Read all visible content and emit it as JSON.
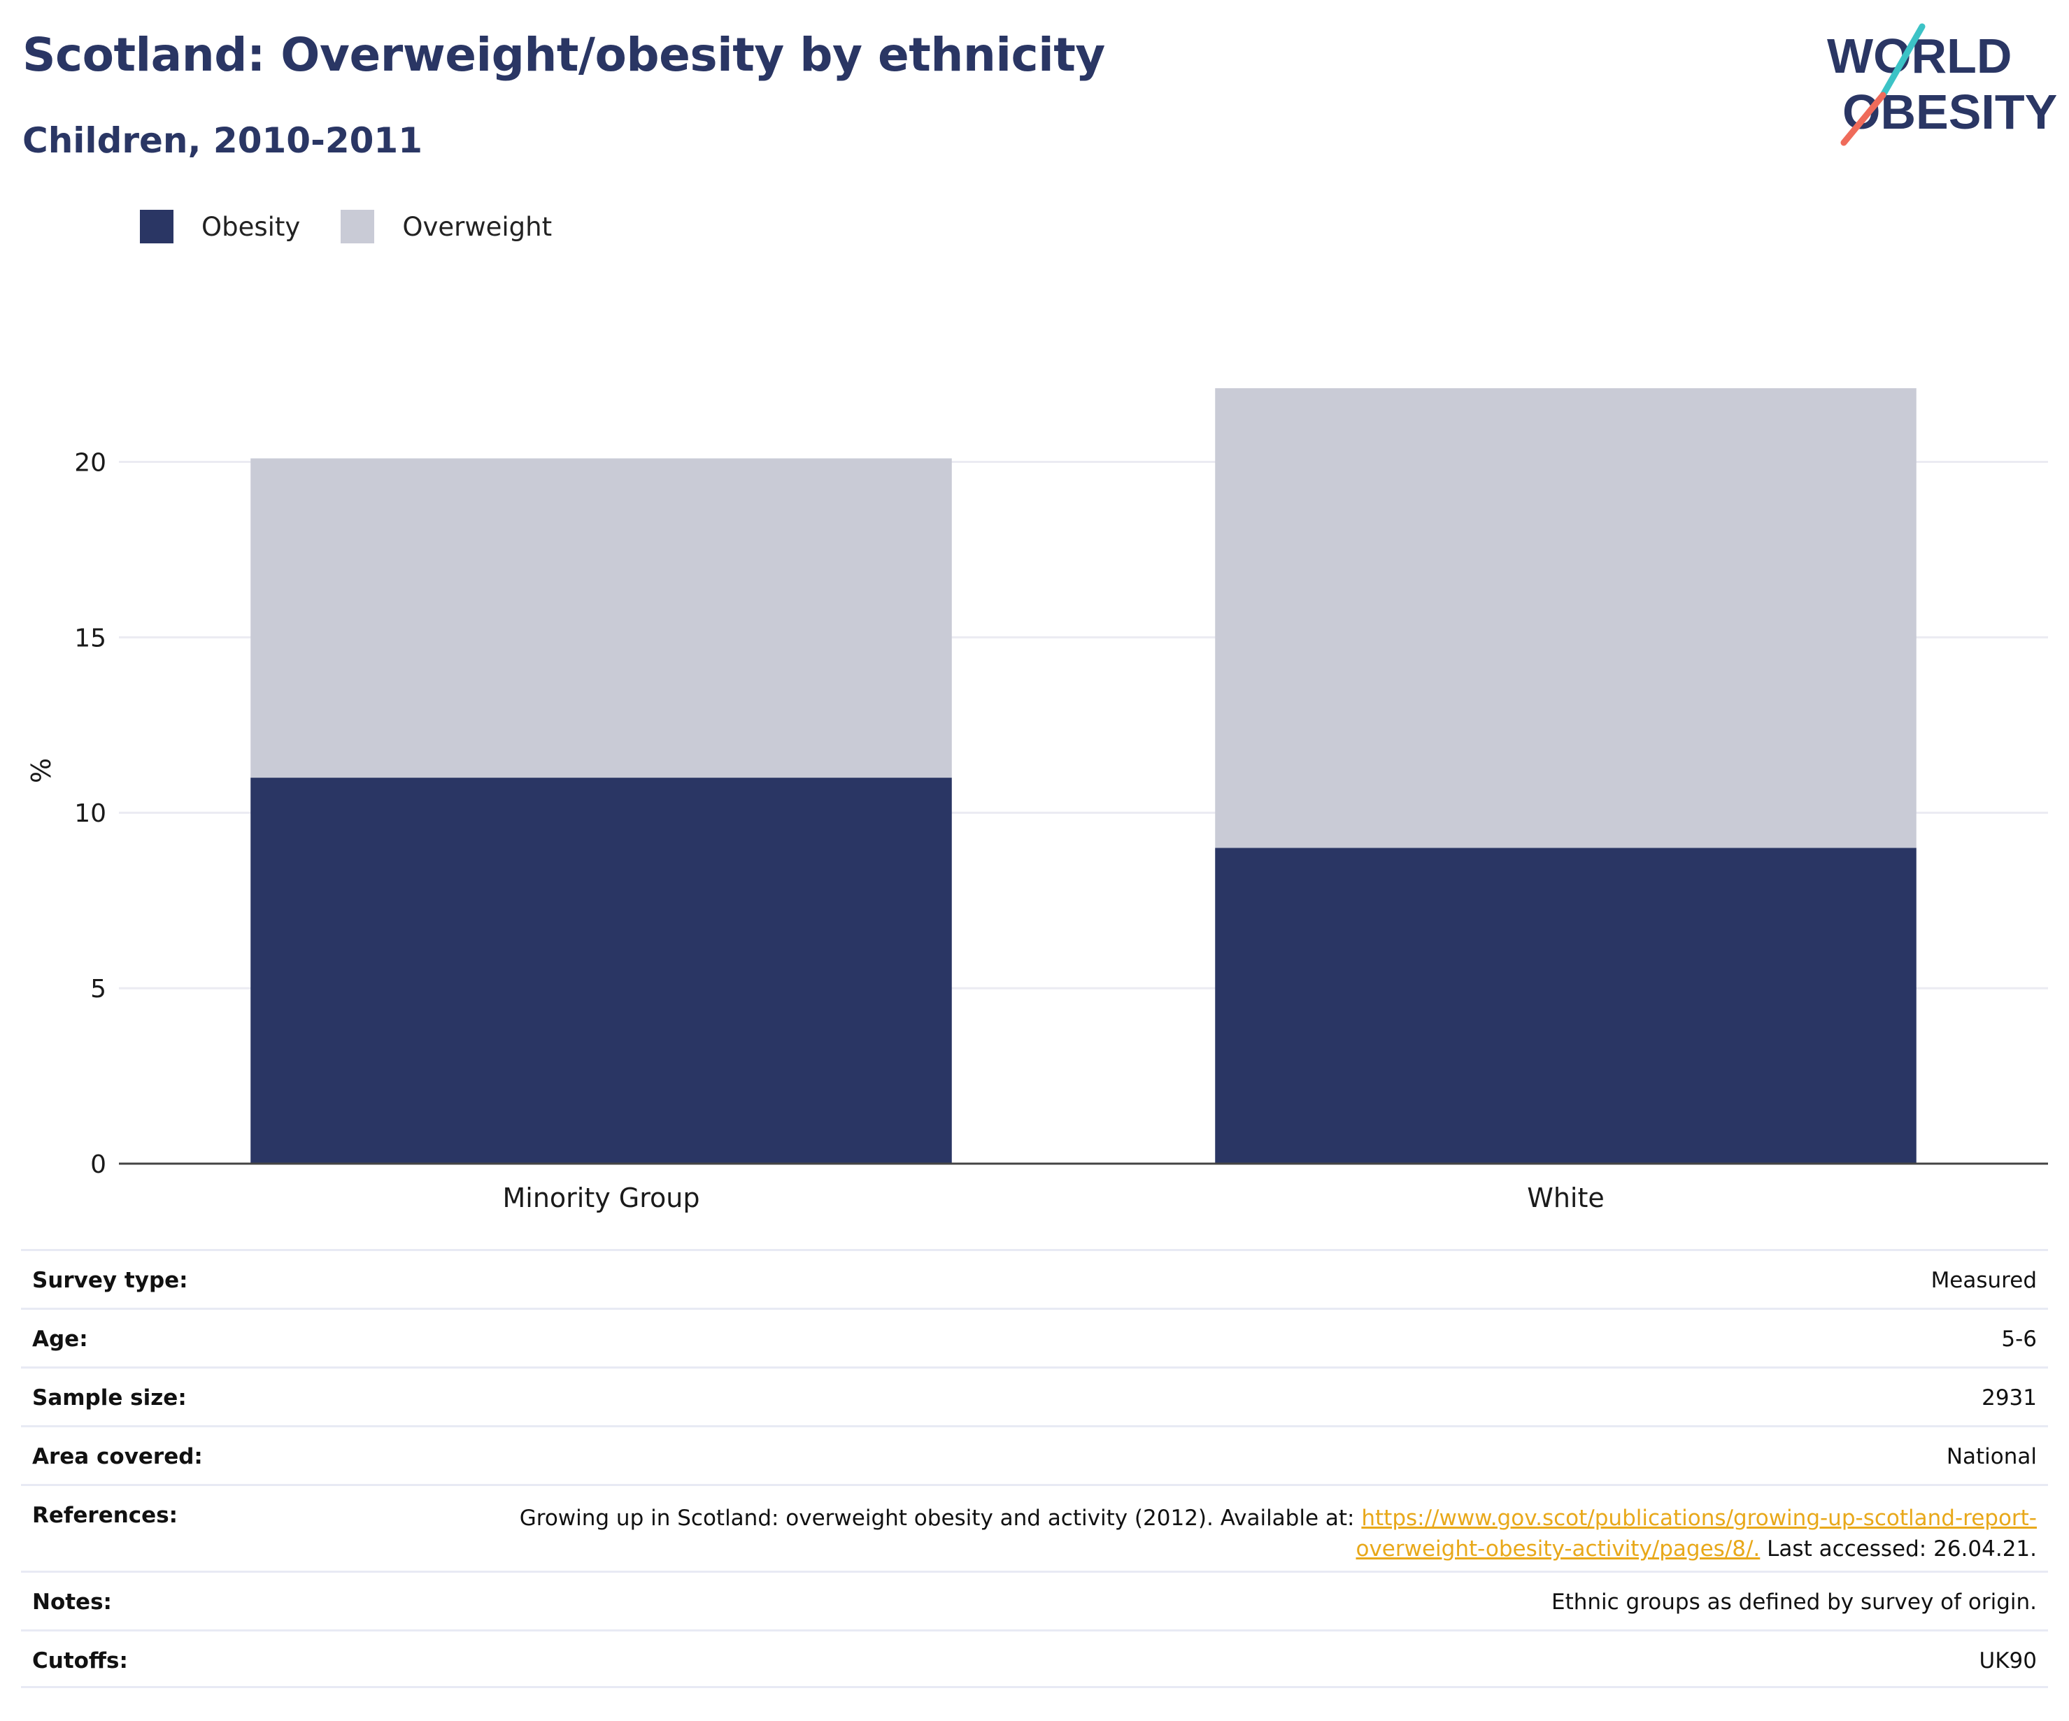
{
  "header": {
    "title": "Scotland: Overweight/obesity by ethnicity",
    "subtitle": "Children, 2010-2011"
  },
  "logo": {
    "line1": "WORLD",
    "line2": "OBESITY",
    "colors": {
      "text": "#2a3664",
      "slash_top": "#3cc3c6",
      "slash_bottom": "#ef6b5a"
    }
  },
  "legend": [
    {
      "label": "Obesity",
      "color": "#2a3664"
    },
    {
      "label": "Overweight",
      "color": "#c9cbd6"
    }
  ],
  "chart_data": {
    "type": "bar",
    "stacked": true,
    "categories": [
      "Minority Group",
      "White"
    ],
    "series": [
      {
        "name": "Obesity",
        "color": "#2a3664",
        "values": [
          11,
          9
        ]
      },
      {
        "name": "Overweight",
        "color": "#c9cbd6",
        "values": [
          9.1,
          13.1
        ]
      }
    ],
    "ylabel": "%",
    "yticks": [
      0,
      5,
      10,
      15,
      20
    ],
    "ylim": [
      0,
      22.8
    ],
    "grid": true,
    "legend_position": "top-left"
  },
  "info": {
    "survey_type_label": "Survey type:",
    "survey_type": "Measured",
    "age_label": "Age:",
    "age": "5-6",
    "sample_size_label": "Sample size:",
    "sample_size": "2931",
    "area_label": "Area covered:",
    "area": "National",
    "references_label": "References:",
    "references_text": "Growing up in Scotland: overweight obesity and activity (2012). Available at:",
    "references_link": "https://www.gov.scot/publications/growing-up-scotland-report-overweight-obesity-activity/pages/8/.",
    "references_tail": "Last accessed: 26.04.21.",
    "notes_label": "Notes:",
    "notes": "Ethnic groups as defined by survey of origin.",
    "cutoffs_label": "Cutoffs:",
    "cutoffs": "UK90"
  }
}
